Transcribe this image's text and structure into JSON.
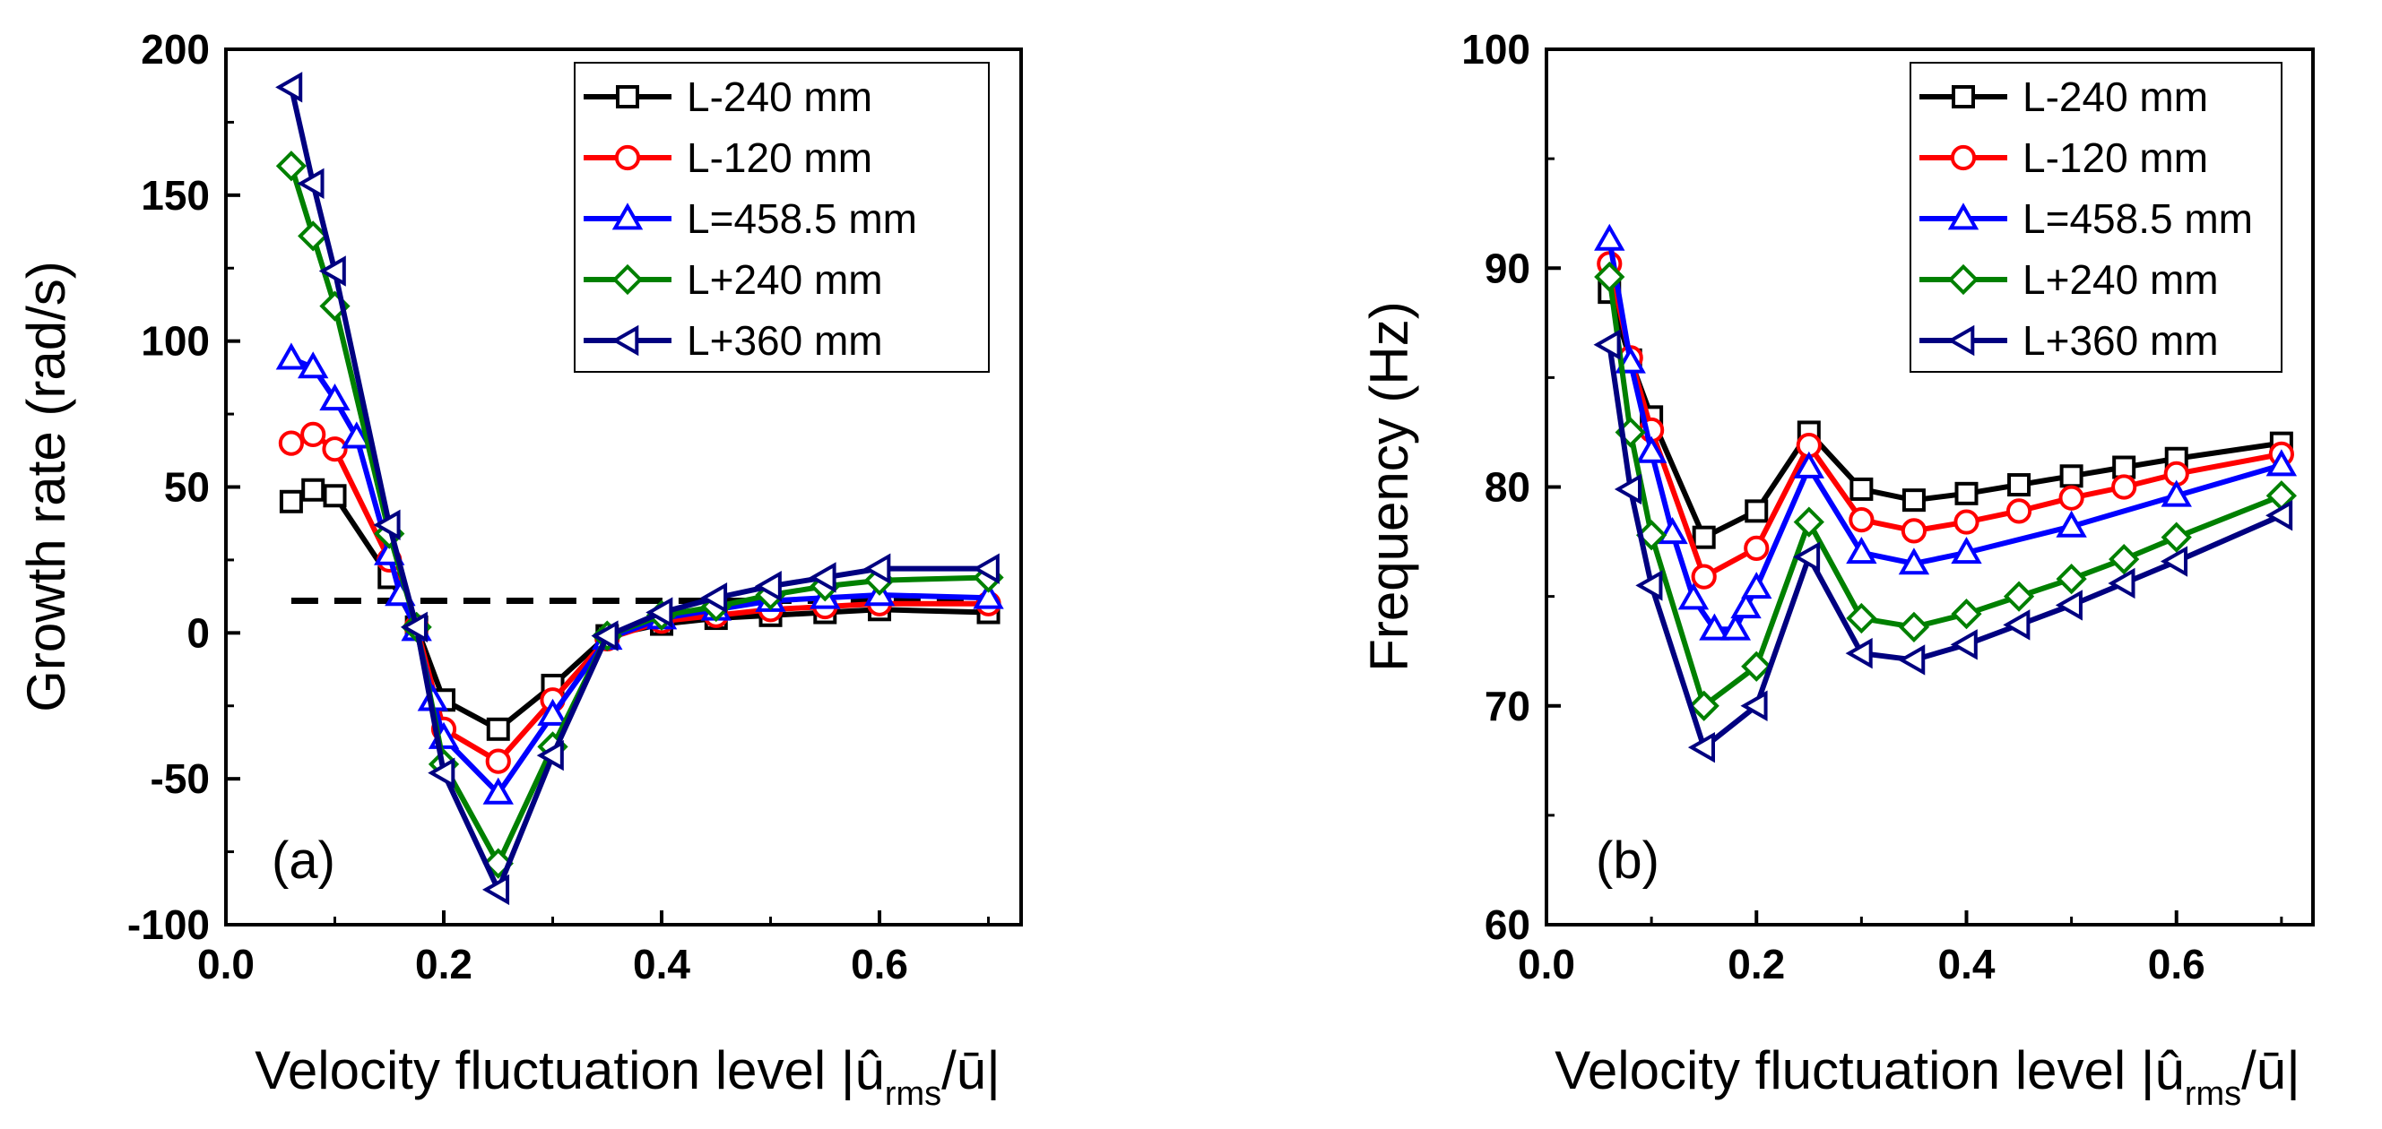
{
  "chart_data": [
    {
      "type": "line",
      "panel_label": "(a)",
      "xlabel_main": "Velocity fluctuation level |û",
      "xlabel_sub": "rms",
      "xlabel_end": "/ū|",
      "ylabel": "Growth rate (rad/s)",
      "xlim": [
        0.0,
        0.73
      ],
      "ylim": [
        -100,
        200
      ],
      "xticks": [
        "0.0",
        "0.2",
        "0.4",
        "0.6"
      ],
      "xtick_values": [
        0.0,
        0.2,
        0.4,
        0.6
      ],
      "yticks": [
        "-100",
        "-50",
        "0",
        "50",
        "100",
        "150",
        "200"
      ],
      "ytick_values": [
        -100,
        -50,
        0,
        50,
        100,
        150,
        200
      ],
      "reference_line": {
        "y": 11,
        "x": [
          0.06,
          0.7
        ],
        "style": "dashed",
        "color": "#000000"
      },
      "legend_position": "top-right",
      "series": [
        {
          "name": "L-240 mm",
          "color": "#000000",
          "marker": "square",
          "x": [
            0.06,
            0.08,
            0.1,
            0.15,
            0.175,
            0.2,
            0.25,
            0.3,
            0.35,
            0.4,
            0.45,
            0.5,
            0.55,
            0.6,
            0.7
          ],
          "y": [
            45,
            49,
            47,
            19,
            2,
            -23,
            -33,
            -18,
            -1,
            3,
            5,
            6,
            7,
            8,
            7
          ]
        },
        {
          "name": "L-120 mm",
          "color": "#ff0000",
          "marker": "circle",
          "x": [
            0.06,
            0.08,
            0.1,
            0.15,
            0.175,
            0.2,
            0.25,
            0.3,
            0.35,
            0.4,
            0.45,
            0.5,
            0.55,
            0.6,
            0.7
          ],
          "y": [
            65,
            68,
            63,
            25,
            2,
            -33,
            -44,
            -23,
            -2,
            4,
            6,
            8,
            9,
            10,
            10
          ]
        },
        {
          "name": "L=458.5 mm",
          "color": "#0000ff",
          "marker": "triangle-up",
          "x": [
            0.06,
            0.08,
            0.1,
            0.12,
            0.15,
            0.16,
            0.175,
            0.19,
            0.2,
            0.25,
            0.3,
            0.35,
            0.4,
            0.45,
            0.5,
            0.55,
            0.6,
            0.7
          ],
          "y": [
            94,
            91,
            80,
            67,
            27,
            13,
            1,
            -23,
            -36,
            -55,
            -28,
            -2,
            5,
            8,
            11,
            12,
            13,
            12
          ]
        },
        {
          "name": "L+240 mm",
          "color": "#008000",
          "marker": "diamond",
          "x": [
            0.06,
            0.08,
            0.1,
            0.15,
            0.175,
            0.2,
            0.25,
            0.3,
            0.35,
            0.4,
            0.45,
            0.5,
            0.55,
            0.6,
            0.7
          ],
          "y": [
            160,
            136,
            112,
            34,
            2,
            -45,
            -79,
            -39,
            -1,
            6,
            9,
            13,
            16,
            18,
            19
          ]
        },
        {
          "name": "L+360 mm",
          "color": "#000080",
          "marker": "triangle-left",
          "x": [
            0.06,
            0.08,
            0.1,
            0.15,
            0.175,
            0.2,
            0.25,
            0.3,
            0.35,
            0.4,
            0.45,
            0.5,
            0.55,
            0.6,
            0.7
          ],
          "y": [
            187,
            154,
            124,
            37,
            2,
            -48,
            -88,
            -42,
            -1,
            7,
            12,
            16,
            19,
            22,
            22
          ]
        }
      ]
    },
    {
      "type": "line",
      "panel_label": "(b)",
      "xlabel_main": "Velocity fluctuation level |û",
      "xlabel_sub": "rms",
      "xlabel_end": "/ū|",
      "ylabel": "Frequency (Hz)",
      "xlim": [
        0.0,
        0.73
      ],
      "ylim": [
        60,
        100
      ],
      "xticks": [
        "0.0",
        "0.2",
        "0.4",
        "0.6"
      ],
      "xtick_values": [
        0.0,
        0.2,
        0.4,
        0.6
      ],
      "yticks": [
        "60",
        "70",
        "80",
        "90",
        "100"
      ],
      "ytick_values": [
        60,
        70,
        80,
        90,
        100
      ],
      "legend_position": "top-right",
      "series": [
        {
          "name": "L-240 mm",
          "color": "#000000",
          "marker": "square",
          "x": [
            0.06,
            0.08,
            0.1,
            0.15,
            0.2,
            0.25,
            0.3,
            0.35,
            0.4,
            0.45,
            0.5,
            0.55,
            0.6,
            0.7
          ],
          "y": [
            88.9,
            85.8,
            83.2,
            77.7,
            78.9,
            82.5,
            79.9,
            79.4,
            79.7,
            80.1,
            80.5,
            80.9,
            81.3,
            82.0
          ]
        },
        {
          "name": "L-120 mm",
          "color": "#ff0000",
          "marker": "circle",
          "x": [
            0.06,
            0.08,
            0.1,
            0.15,
            0.2,
            0.25,
            0.3,
            0.35,
            0.4,
            0.45,
            0.5,
            0.55,
            0.6,
            0.7
          ],
          "y": [
            90.2,
            85.9,
            82.6,
            75.9,
            77.2,
            81.9,
            78.5,
            78.0,
            78.4,
            78.9,
            79.5,
            80.0,
            80.6,
            81.5
          ]
        },
        {
          "name": "L=458.5 mm",
          "color": "#0000ff",
          "marker": "triangle-up",
          "x": [
            0.06,
            0.08,
            0.1,
            0.12,
            0.14,
            0.16,
            0.18,
            0.19,
            0.2,
            0.25,
            0.3,
            0.35,
            0.4,
            0.5,
            0.6,
            0.7
          ],
          "y": [
            91.3,
            85.7,
            81.6,
            77.9,
            74.9,
            73.5,
            73.5,
            74.5,
            75.4,
            80.9,
            77.0,
            76.5,
            77.0,
            78.2,
            79.6,
            81.0
          ]
        },
        {
          "name": "L+240  mm",
          "color": "#008000",
          "marker": "diamond",
          "x": [
            0.06,
            0.08,
            0.1,
            0.15,
            0.2,
            0.25,
            0.3,
            0.35,
            0.4,
            0.45,
            0.5,
            0.55,
            0.6,
            0.7
          ],
          "y": [
            89.6,
            82.5,
            77.8,
            70.0,
            71.8,
            78.4,
            74.0,
            73.6,
            74.2,
            75.0,
            75.8,
            76.7,
            77.7,
            79.6
          ]
        },
        {
          "name": "L+360 mm",
          "color": "#000080",
          "marker": "triangle-left",
          "x": [
            0.06,
            0.08,
            0.1,
            0.15,
            0.2,
            0.25,
            0.3,
            0.35,
            0.4,
            0.45,
            0.5,
            0.55,
            0.6,
            0.7
          ],
          "y": [
            86.5,
            79.9,
            75.5,
            68.1,
            70.0,
            76.8,
            72.4,
            72.1,
            72.8,
            73.7,
            74.6,
            75.6,
            76.6,
            78.7
          ]
        }
      ]
    }
  ]
}
